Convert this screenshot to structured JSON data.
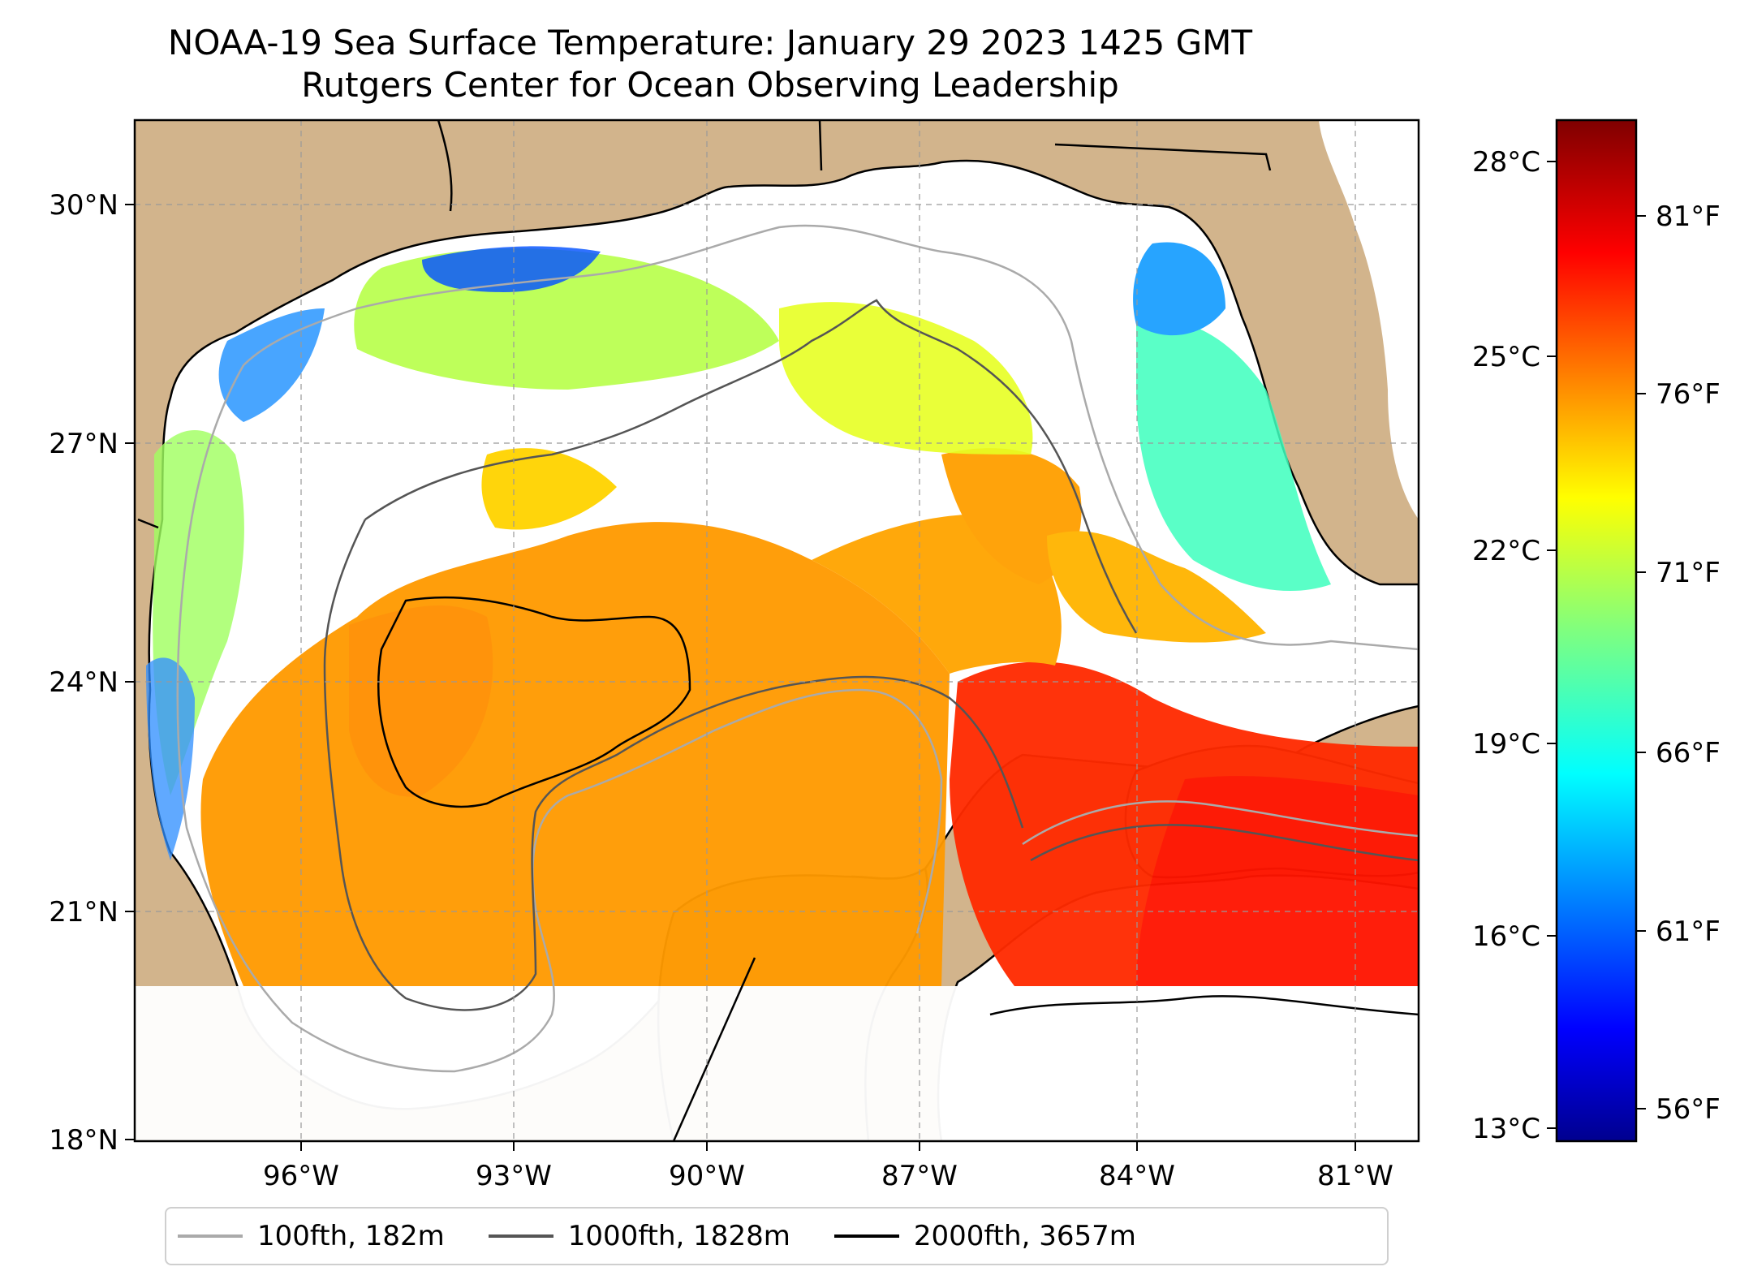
{
  "title": {
    "line1": "NOAA-19 Sea Surface Temperature: January 29 2023 1425 GMT",
    "line2": "Rutgers Center for Ocean Observing Leadership"
  },
  "map": {
    "extent": {
      "lon_min": -98.2,
      "lon_max": -79.5,
      "lat_min": 18,
      "lat_max": 31
    },
    "lat_ticks": [
      {
        "value": 30,
        "label": "30°N"
      },
      {
        "value": 27,
        "label": "27°N"
      },
      {
        "value": 24,
        "label": "24°N"
      },
      {
        "value": 21,
        "label": "21°N"
      },
      {
        "value": 18,
        "label": "18°N"
      }
    ],
    "lon_ticks": [
      {
        "value": -96,
        "label": "96°W"
      },
      {
        "value": -93,
        "label": "93°W"
      },
      {
        "value": -90,
        "label": "90°W"
      },
      {
        "value": -87,
        "label": "87°W"
      },
      {
        "value": -84,
        "label": "84°W"
      },
      {
        "value": -81,
        "label": "81°W"
      }
    ],
    "land_color": "#d2b48c",
    "coastline_color": "#000000",
    "gridlines": "dashed, on"
  },
  "colorbar": {
    "colormap": "jet",
    "range_c": [
      12.6,
      29.2
    ],
    "celsius_ticks": [
      {
        "value": 28,
        "label": "28°C"
      },
      {
        "value": 25,
        "label": "25°C"
      },
      {
        "value": 22,
        "label": "22°C"
      },
      {
        "value": 19,
        "label": "19°C"
      },
      {
        "value": 16,
        "label": "16°C"
      },
      {
        "value": 13,
        "label": "13°C"
      }
    ],
    "fahrenheit_ticks": [
      {
        "value": 81,
        "label": "81°F"
      },
      {
        "value": 76,
        "label": "76°F"
      },
      {
        "value": 71,
        "label": "71°F"
      },
      {
        "value": 66,
        "label": "66°F"
      },
      {
        "value": 61,
        "label": "61°F"
      },
      {
        "value": 56,
        "label": "56°F"
      }
    ]
  },
  "legend": {
    "items": [
      {
        "label": "100fth, 182m",
        "color": "#aaaaaa"
      },
      {
        "label": "1000fth, 1828m",
        "color": "#555555"
      },
      {
        "label": "2000fth, 3657m",
        "color": "#000000"
      }
    ]
  }
}
